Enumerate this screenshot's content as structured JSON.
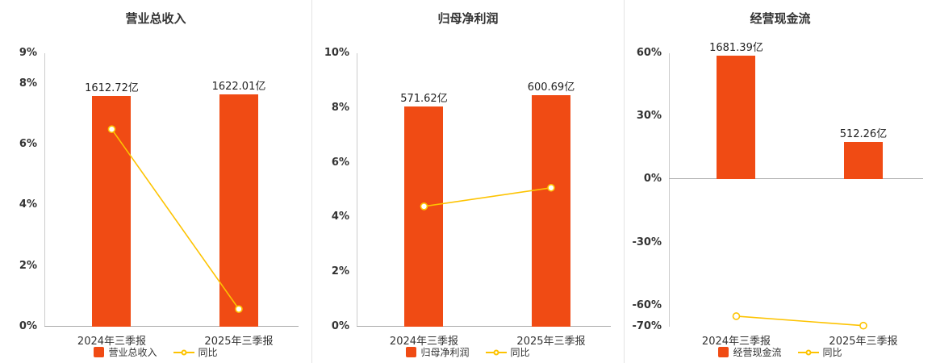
{
  "colors": {
    "bar": "#f04b14",
    "line": "#fdc301",
    "marker_fill": "#ffffff",
    "axis_line": "#cccccc",
    "zero_line": "#aaaaaa",
    "tick_text": "#333333",
    "label_text": "#222222",
    "title_text": "#333333"
  },
  "chart_data": [
    {
      "type": "bar-line",
      "title": "营业总收入",
      "categories": [
        "2024年三季报",
        "2025年三季报"
      ],
      "series": [
        {
          "name": "营业总收入",
          "type": "bar",
          "unit": "亿",
          "values": [
            1612.72,
            1622.01
          ],
          "labels": [
            "1612.72亿",
            "1622.01亿"
          ],
          "display_pct": [
            7.6,
            7.64
          ]
        },
        {
          "name": "同比",
          "type": "line",
          "values_pct": [
            6.5,
            0.58
          ]
        }
      ],
      "yaxis": {
        "min": 0,
        "max": 9,
        "tick_labels": [
          "9%",
          "8%",
          "6%",
          "4%",
          "2%",
          "0%"
        ],
        "tick_values": [
          9,
          8,
          6,
          4,
          2,
          0
        ]
      },
      "legend": [
        "营业总收入",
        "同比"
      ],
      "legend_position": "bottom",
      "grid": false
    },
    {
      "type": "bar-line",
      "title": "归母净利润",
      "categories": [
        "2024年三季报",
        "2025年三季报"
      ],
      "series": [
        {
          "name": "归母净利润",
          "type": "bar",
          "unit": "亿",
          "values": [
            571.62,
            600.69
          ],
          "labels": [
            "571.62亿",
            "600.69亿"
          ],
          "display_pct": [
            8.05,
            8.46
          ]
        },
        {
          "name": "同比",
          "type": "line",
          "values_pct": [
            4.4,
            5.08
          ]
        }
      ],
      "yaxis": {
        "min": 0,
        "max": 10,
        "tick_labels": [
          "10%",
          "8%",
          "6%",
          "4%",
          "2%",
          "0%"
        ],
        "tick_values": [
          10,
          8,
          6,
          4,
          2,
          0
        ]
      },
      "legend": [
        "归母净利润",
        "同比"
      ],
      "legend_position": "bottom",
      "grid": false
    },
    {
      "type": "bar-line",
      "title": "经营现金流",
      "categories": [
        "2024年三季报",
        "2025年三季报"
      ],
      "series": [
        {
          "name": "经营现金流",
          "type": "bar",
          "unit": "亿",
          "values": [
            1681.39,
            512.26
          ],
          "labels": [
            "1681.39亿",
            "512.26亿"
          ],
          "display_pct": [
            58.8,
            17.91
          ]
        },
        {
          "name": "同比",
          "type": "line",
          "values_pct": [
            -65.0,
            -69.5
          ]
        }
      ],
      "yaxis": {
        "min": -70,
        "max": 60,
        "tick_labels": [
          "60%",
          "30%",
          "0%",
          "-30%",
          "-60%",
          "-70%"
        ],
        "tick_values": [
          60,
          30,
          0,
          -30,
          -60,
          -70
        ]
      },
      "legend": [
        "经营现金流",
        "同比"
      ],
      "legend_position": "bottom",
      "grid": false
    }
  ]
}
